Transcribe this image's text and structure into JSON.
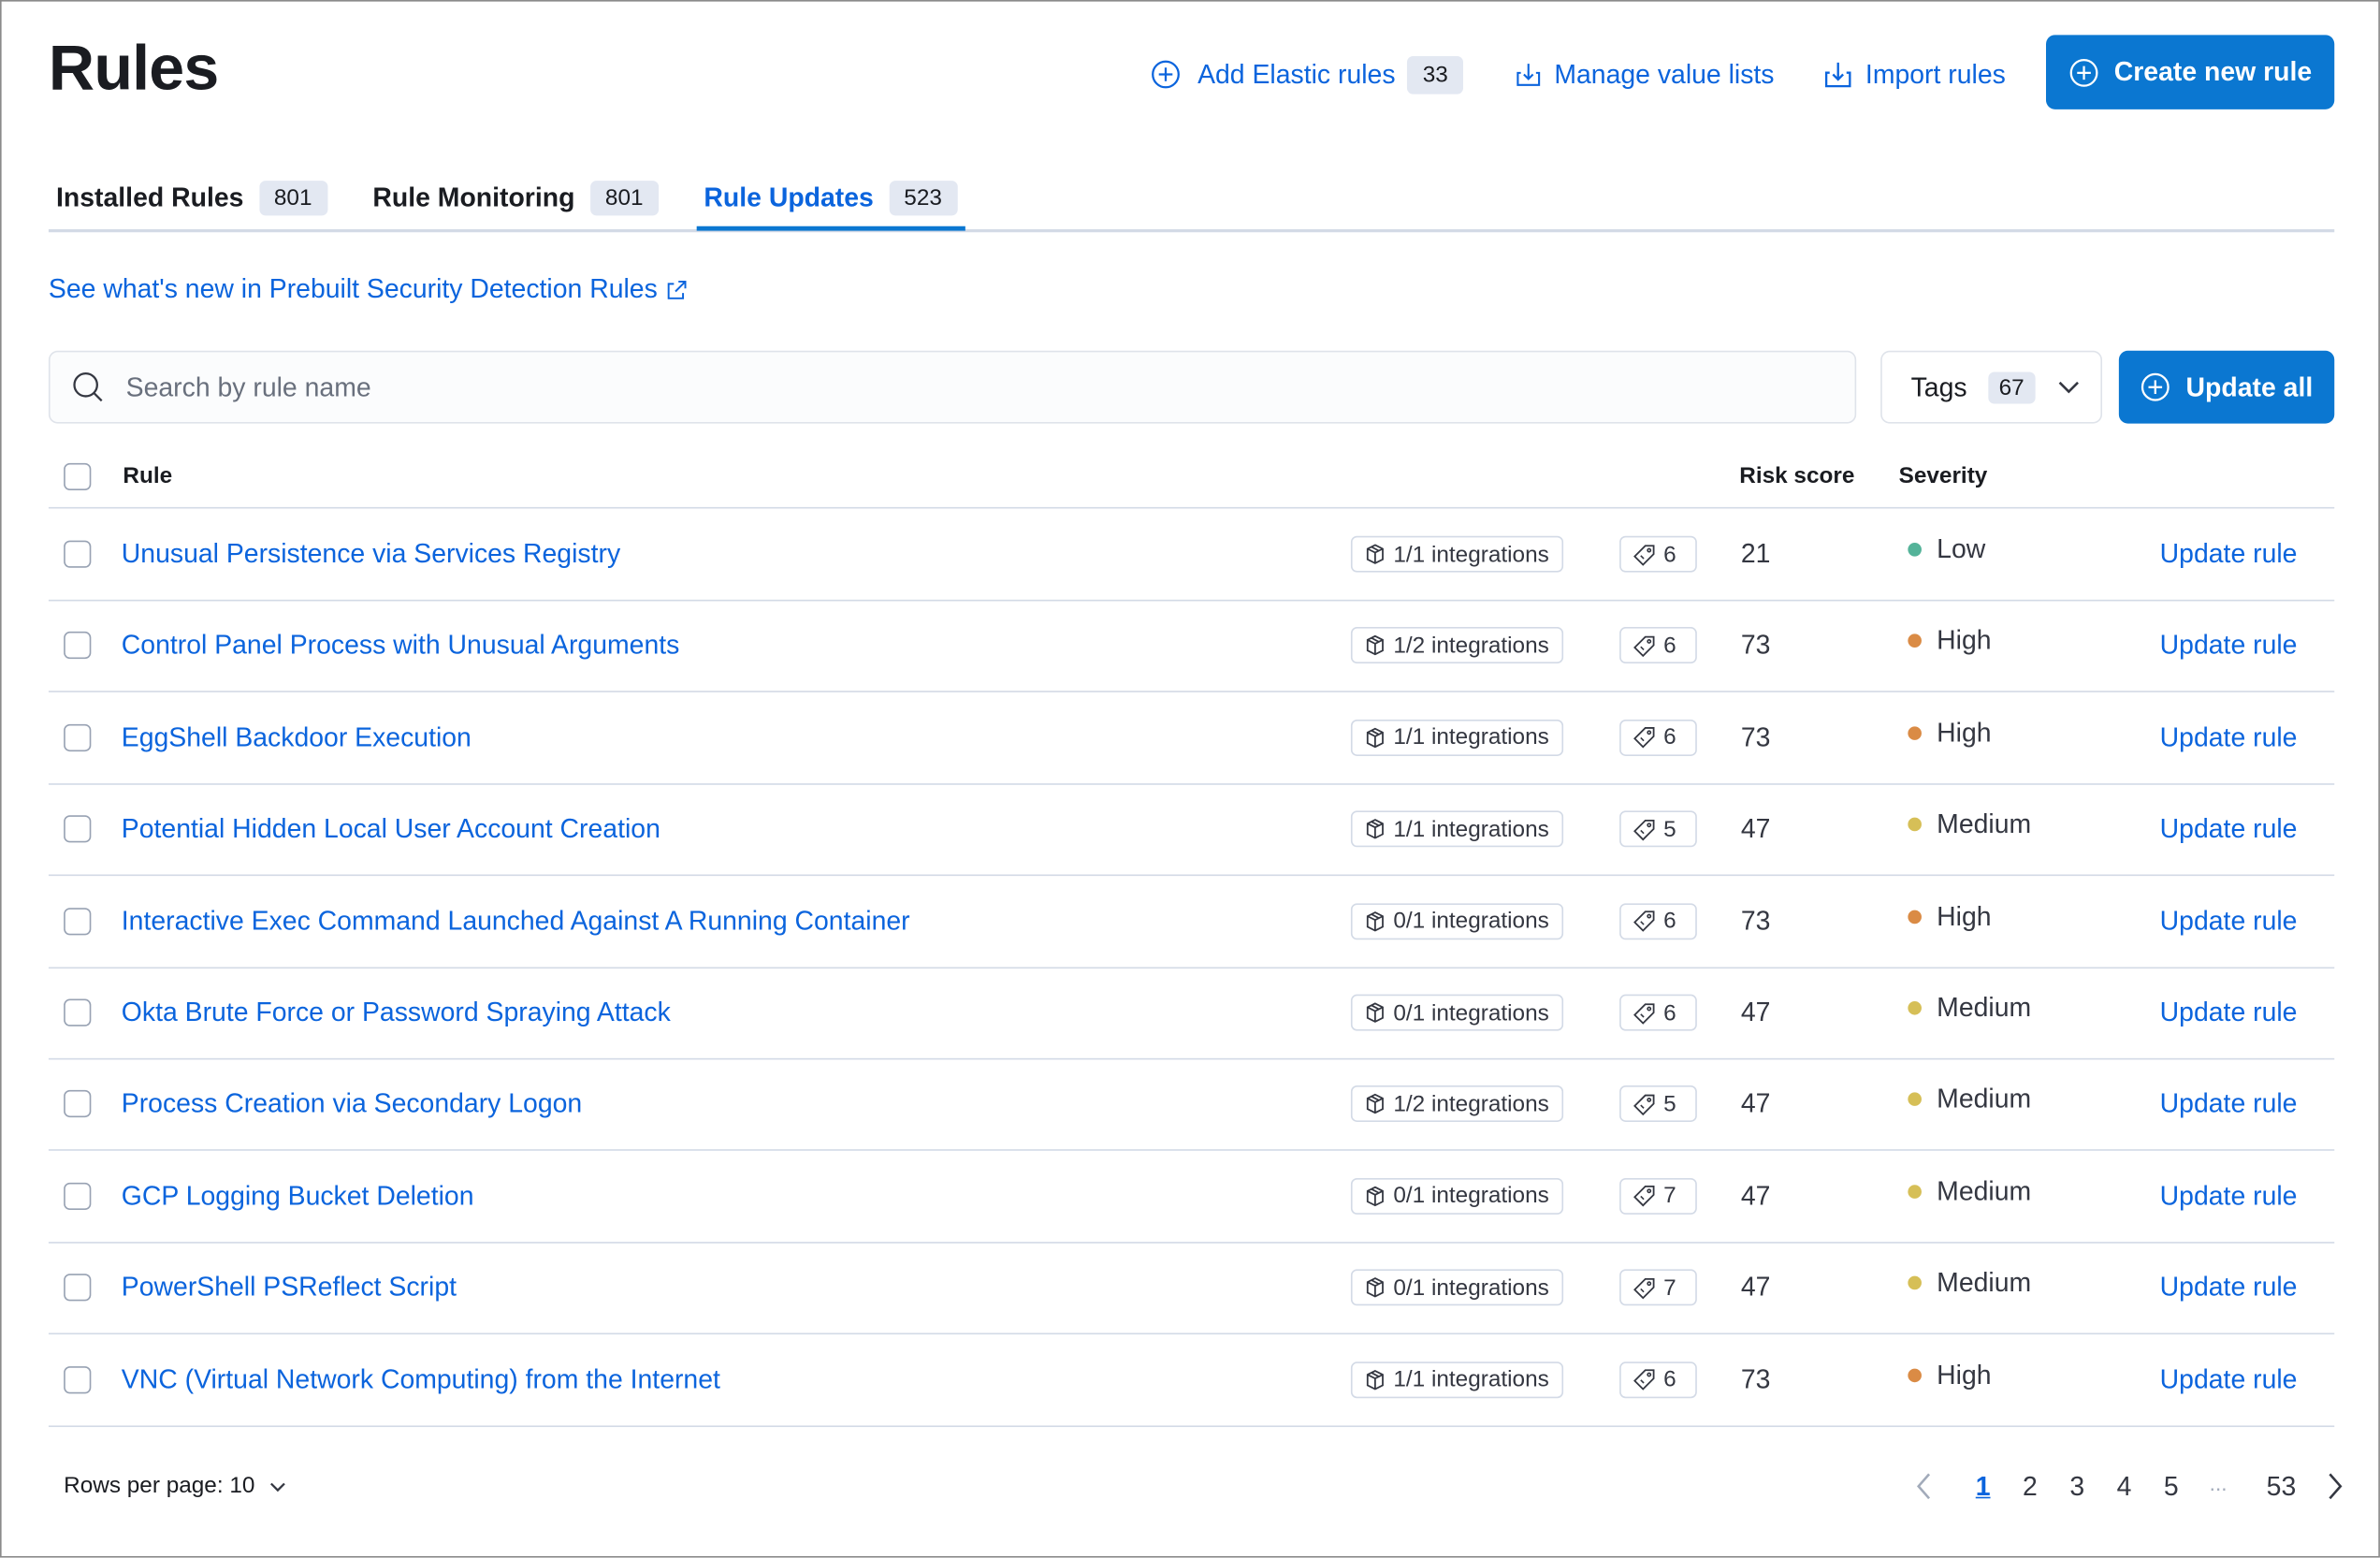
{
  "header": {
    "title": "Rules",
    "add_elastic_rules": {
      "label": "Add Elastic rules",
      "count": "33",
      "icon": "plus-circle-icon"
    },
    "manage_value_lists": {
      "label": "Manage value lists",
      "icon": "import-icon"
    },
    "import_rules": {
      "label": "Import rules",
      "icon": "import-icon"
    },
    "create_new_rule": {
      "label": "Create new rule",
      "icon": "plus-circle-icon"
    }
  },
  "tabs": [
    {
      "label": "Installed Rules",
      "count": "801",
      "active": false
    },
    {
      "label": "Rule Monitoring",
      "count": "801",
      "active": false
    },
    {
      "label": "Rule Updates",
      "count": "523",
      "active": true
    }
  ],
  "whats_new_link": "See what's new in Prebuilt Security Detection Rules",
  "search": {
    "placeholder": "Search by rule name",
    "value": ""
  },
  "tags_filter": {
    "label": "Tags",
    "count": "67"
  },
  "update_all": {
    "label": "Update all"
  },
  "table": {
    "columns": {
      "rule": "Rule",
      "risk_score": "Risk score",
      "severity": "Severity"
    },
    "rows": [
      {
        "name": "Unusual Persistence via Services Registry",
        "integrations": "1/1 integrations",
        "tags": "6",
        "risk": "21",
        "severity": "Low",
        "action": "Update rule"
      },
      {
        "name": "Control Panel Process with Unusual Arguments",
        "integrations": "1/2 integrations",
        "tags": "6",
        "risk": "73",
        "severity": "High",
        "action": "Update rule"
      },
      {
        "name": "EggShell Backdoor Execution",
        "integrations": "1/1 integrations",
        "tags": "6",
        "risk": "73",
        "severity": "High",
        "action": "Update rule"
      },
      {
        "name": "Potential Hidden Local User Account Creation",
        "integrations": "1/1 integrations",
        "tags": "5",
        "risk": "47",
        "severity": "Medium",
        "action": "Update rule"
      },
      {
        "name": "Interactive Exec Command Launched Against A Running Container",
        "integrations": "0/1 integrations",
        "tags": "6",
        "risk": "73",
        "severity": "High",
        "action": "Update rule"
      },
      {
        "name": "Okta Brute Force or Password Spraying Attack",
        "integrations": "0/1 integrations",
        "tags": "6",
        "risk": "47",
        "severity": "Medium",
        "action": "Update rule"
      },
      {
        "name": "Process Creation via Secondary Logon",
        "integrations": "1/2 integrations",
        "tags": "5",
        "risk": "47",
        "severity": "Medium",
        "action": "Update rule"
      },
      {
        "name": "GCP Logging Bucket Deletion",
        "integrations": "0/1 integrations",
        "tags": "7",
        "risk": "47",
        "severity": "Medium",
        "action": "Update rule"
      },
      {
        "name": "PowerShell PSReflect Script",
        "integrations": "0/1 integrations",
        "tags": "7",
        "risk": "47",
        "severity": "Medium",
        "action": "Update rule"
      },
      {
        "name": "VNC (Virtual Network Computing) from the Internet",
        "integrations": "1/1 integrations",
        "tags": "6",
        "risk": "73",
        "severity": "High",
        "action": "Update rule"
      }
    ]
  },
  "severity_colors": {
    "Low": "#54b399",
    "High": "#da8b45",
    "Medium": "#d6bf57"
  },
  "pagination": {
    "rows_per_page": "Rows per page: 10",
    "pages": [
      "1",
      "2",
      "3",
      "4",
      "5",
      "...",
      "53"
    ],
    "current": "1"
  },
  "colors": {
    "accent": "#0b77d1",
    "link": "#0b64dd"
  }
}
